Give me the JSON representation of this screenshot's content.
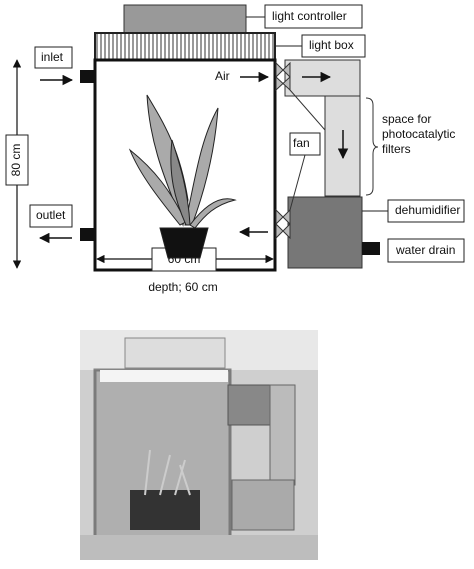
{
  "diagram": {
    "labels": {
      "light_controller": "light controller",
      "light_box": "light box",
      "inlet": "inlet",
      "air": "Air",
      "height": "80 cm",
      "fan": "fan",
      "filter_space": [
        "space for",
        "photocatalytic",
        "filters"
      ],
      "outlet": "outlet",
      "dehumidifier": "dehumidifier",
      "water_drain": "water drain",
      "width": "60 cm",
      "depth": "depth; 60 cm"
    }
  }
}
